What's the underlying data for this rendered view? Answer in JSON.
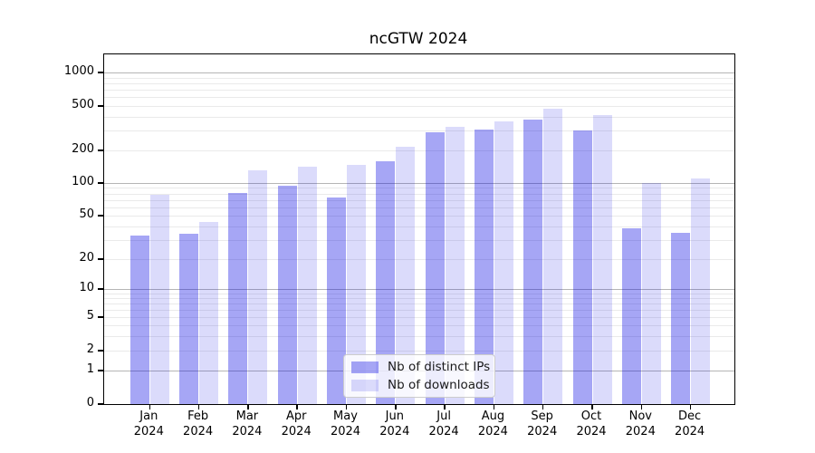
{
  "title": "ncGTW 2024",
  "colors": {
    "bar_base": "#0000e2",
    "bar_dark_rgba": "rgba(0,0,226,0.35)",
    "bar_light_rgba": "rgba(0,0,226,0.14)",
    "grid_major": "#b5b5b5",
    "grid_minor": "#eaeaea",
    "axis": "#000000",
    "legend_border": "#cccccc"
  },
  "chart_data": {
    "type": "bar",
    "title": "ncGTW 2024",
    "xlabel": "",
    "ylabel": "",
    "yscale": "symlog-asinh (log-like, linear near 0)",
    "grid": true,
    "legend_position": "inside lower-center",
    "ylim": [
      0,
      1300
    ],
    "y_ticks": [
      0,
      1,
      2,
      5,
      10,
      20,
      50,
      100,
      200,
      500,
      1000
    ],
    "y_major_gridlines": [
      1,
      10,
      100,
      1000
    ],
    "y_minor_gridlines": [
      2,
      3,
      4,
      5,
      6,
      7,
      8,
      9,
      20,
      30,
      40,
      50,
      60,
      70,
      80,
      90,
      200,
      300,
      400,
      500,
      600,
      700,
      800,
      900
    ],
    "months": [
      "Jan",
      "Feb",
      "Mar",
      "Apr",
      "May",
      "Jun",
      "Jul",
      "Aug",
      "Sep",
      "Oct",
      "Nov",
      "Dec"
    ],
    "year": "2024",
    "series": [
      {
        "name": "Nb of distinct IPs",
        "values": [
          33,
          34,
          81,
          95,
          73,
          160,
          290,
          310,
          380,
          300,
          38,
          35
        ]
      },
      {
        "name": "Nb of downloads",
        "values": [
          78,
          44,
          130,
          142,
          146,
          215,
          325,
          365,
          470,
          415,
          100,
          110
        ]
      }
    ]
  }
}
